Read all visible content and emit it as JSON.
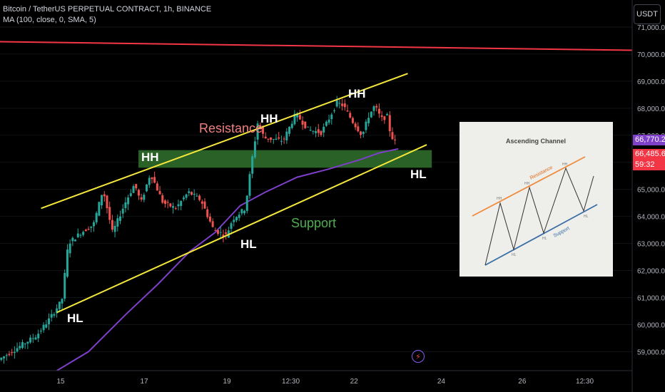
{
  "legend": {
    "symbol": "Bitcoin / TetherUS PERPETUAL CONTRACT, 1h, BINANCE",
    "indicator": "MA (100, close, 0, SMA, 5)"
  },
  "currency_button": "USDT",
  "badges": {
    "last_price": "66,770.2",
    "ma_value": "66,485.6",
    "countdown": "59:32"
  },
  "colors": {
    "background": "#000000",
    "up_candle": "#26a69a",
    "down_candle": "#ef5350",
    "ma_line": "#7e3fc9",
    "channel_line": "#f5e83c",
    "resistance_level": "#f23645",
    "zone": "#2e6b2a",
    "resistance_text": "#f08080",
    "support_text": "#4caf50"
  },
  "annotations": {
    "hh1": "HH",
    "hh2": "HH",
    "hh3": "HH",
    "hl1": "HL",
    "hl2": "HL",
    "hl3": "HL",
    "resistance": "Resistance",
    "support": "Support"
  },
  "inset": {
    "title": "Ascending Channel",
    "resistance": "Resistance",
    "support": "Support",
    "hh_labels": [
      "HH",
      "HH",
      "HH"
    ],
    "hl_labels": [
      "HL",
      "HL",
      "HL"
    ]
  },
  "chart_data": {
    "type": "candlestick",
    "title": "Bitcoin / TetherUS PERPETUAL CONTRACT, 1h, BINANCE",
    "y_ticks": [
      59000,
      60000,
      61000,
      62000,
      63000,
      64000,
      65000,
      66000,
      67000,
      68000,
      69000,
      70000,
      71000
    ],
    "y_tick_labels": [
      "59,000.0",
      "60,000.0",
      "61,000.0",
      "62,000.0",
      "63,000.0",
      "64,000.0",
      "65,000.0",
      "66,000.0",
      "67,000.0",
      "68,000.0",
      "69,000.0",
      "70,000.0",
      "71,000.0"
    ],
    "x_tick_labels": [
      "15",
      "17",
      "19",
      "12:30",
      "22",
      "24",
      "26",
      "12:30"
    ],
    "ylim": [
      58300,
      72000
    ],
    "horizontal_levels": [
      {
        "price": 70300,
        "label": ""
      }
    ],
    "zone": {
      "low": 65800,
      "high": 66450
    },
    "channel": {
      "upper": [
        {
          "x": 0.065,
          "y": 64300
        },
        {
          "x": 0.645,
          "y": 69280
        }
      ],
      "lower": [
        {
          "x": 0.09,
          "y": 60450
        },
        {
          "x": 0.675,
          "y": 66650
        }
      ]
    },
    "ma_path": [
      [
        0.09,
        58300
      ],
      [
        0.14,
        59000
      ],
      [
        0.2,
        60400
      ],
      [
        0.25,
        61500
      ],
      [
        0.3,
        62700
      ],
      [
        0.34,
        63400
      ],
      [
        0.38,
        64400
      ],
      [
        0.42,
        64900
      ],
      [
        0.47,
        65450
      ],
      [
        0.52,
        65750
      ],
      [
        0.57,
        66100
      ],
      [
        0.6,
        66350
      ],
      [
        0.63,
        66500
      ]
    ],
    "swings": [
      [
        0,
        58700
      ],
      [
        0.06,
        59600
      ],
      [
        0.08,
        60200
      ],
      [
        0.1,
        60900
      ],
      [
        0.11,
        63000
      ],
      [
        0.13,
        63400
      ],
      [
        0.15,
        63700
      ],
      [
        0.165,
        65000
      ],
      [
        0.18,
        63400
      ],
      [
        0.2,
        64500
      ],
      [
        0.215,
        65200
      ],
      [
        0.225,
        64500
      ],
      [
        0.24,
        65600
      ],
      [
        0.26,
        64500
      ],
      [
        0.28,
        64300
      ],
      [
        0.3,
        64900
      ],
      [
        0.32,
        64600
      ],
      [
        0.34,
        63500
      ],
      [
        0.36,
        63300
      ],
      [
        0.37,
        63900
      ],
      [
        0.39,
        64300
      ],
      [
        0.4,
        66000
      ],
      [
        0.41,
        67500
      ],
      [
        0.42,
        66900
      ],
      [
        0.45,
        66800
      ],
      [
        0.47,
        67800
      ],
      [
        0.49,
        67200
      ],
      [
        0.51,
        67100
      ],
      [
        0.52,
        67500
      ],
      [
        0.535,
        68200
      ],
      [
        0.545,
        68100
      ],
      [
        0.56,
        67500
      ],
      [
        0.575,
        67000
      ],
      [
        0.585,
        67700
      ],
      [
        0.595,
        68100
      ],
      [
        0.605,
        67600
      ],
      [
        0.615,
        67700
      ],
      [
        0.62,
        67000
      ],
      [
        0.627,
        66770
      ]
    ]
  }
}
